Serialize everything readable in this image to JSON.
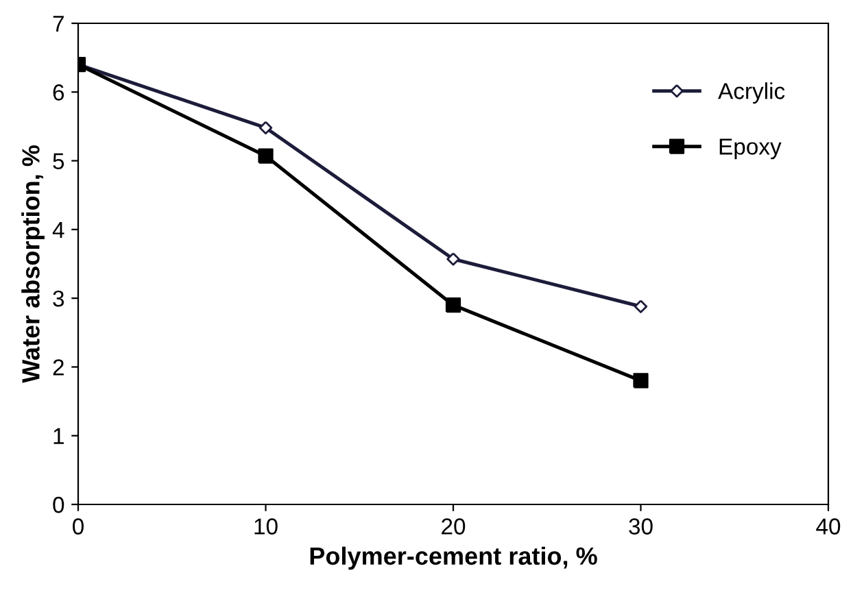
{
  "chart_data": {
    "type": "line",
    "xlabel": "Polymer-cement ratio, %",
    "ylabel": "Water absorption, %",
    "x": [
      0,
      10,
      20,
      30
    ],
    "series": [
      {
        "name": "Acrylic",
        "color": "#1c1c3a",
        "values": [
          6.4,
          5.48,
          3.57,
          2.88
        ],
        "marker": "diamond"
      },
      {
        "name": "Epoxy",
        "color": "#000000",
        "values": [
          6.4,
          5.07,
          2.9,
          1.8
        ],
        "marker": "square"
      }
    ],
    "xlim": [
      0,
      40
    ],
    "xticks": [
      0,
      10,
      20,
      30,
      40
    ],
    "ylim": [
      0,
      7
    ],
    "yticks": [
      0,
      1,
      2,
      3,
      4,
      5,
      6,
      7
    ],
    "grid": false,
    "legend": "top right",
    "line_style": "solid"
  }
}
